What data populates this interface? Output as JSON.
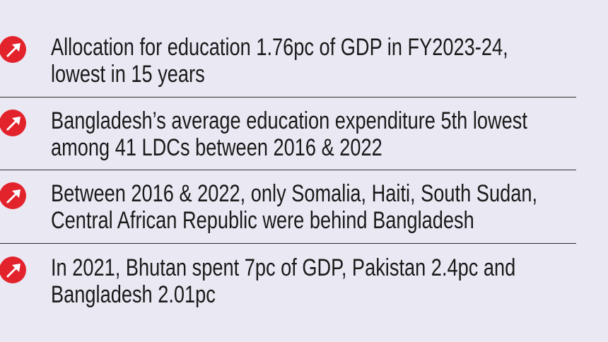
{
  "items": [
    {
      "lines": [
        "Allocation for education 1.76pc of GDP in FY2023-24,",
        "lowest in 15 years"
      ]
    },
    {
      "lines": [
        "Bangladesh’s average education expenditure 5th lowest",
        "among 41 LDCs between 2016 & 2022"
      ]
    },
    {
      "lines": [
        "Between 2016 & 2022, only Somalia, Haiti, South Sudan,",
        "Central African Republic were behind Bangladesh"
      ]
    },
    {
      "lines": [
        "In 2021, Bhutan spent 7pc of GDP, Pakistan 2.4pc and",
        "Bangladesh 2.01pc"
      ]
    }
  ]
}
